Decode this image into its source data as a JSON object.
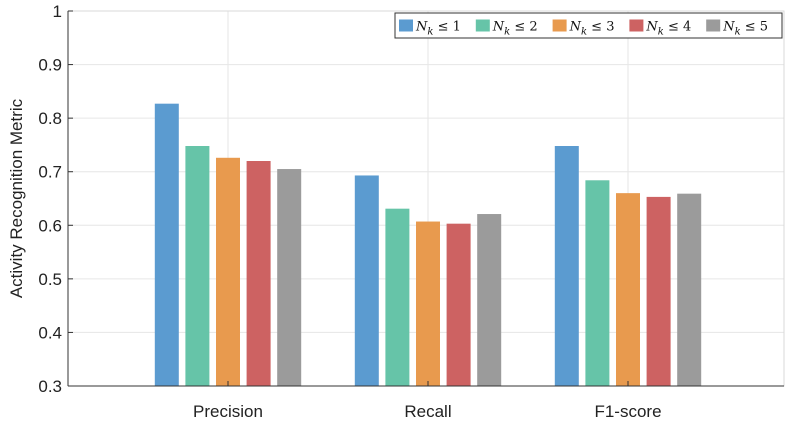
{
  "chart_data": {
    "type": "bar",
    "title": "",
    "xlabel": "",
    "ylabel": "Activity Recognition Metric",
    "categories": [
      "Precision",
      "Recall",
      "F1-score"
    ],
    "ylim": [
      0.3,
      1.0
    ],
    "yticks": [
      0.3,
      0.4,
      0.5,
      0.6,
      0.7,
      0.8,
      0.9,
      1
    ],
    "ytick_labels": [
      "0.3",
      "0.4",
      "0.5",
      "0.6",
      "0.7",
      "0.8",
      "0.9",
      "1"
    ],
    "grid": true,
    "legend_position": "top-right",
    "series": [
      {
        "name": "N_k ≤ 1",
        "legend_main": "N",
        "legend_sub": "k",
        "legend_rest": " ≤ 1",
        "color": "#5b9bd0",
        "values": [
          0.827,
          0.693,
          0.748
        ]
      },
      {
        "name": "N_k ≤ 2",
        "legend_main": "N",
        "legend_sub": "k",
        "legend_rest": " ≤ 2",
        "color": "#66c4a8",
        "values": [
          0.748,
          0.631,
          0.684
        ]
      },
      {
        "name": "N_k ≤ 3",
        "legend_main": "N",
        "legend_sub": "k",
        "legend_rest": " ≤ 3",
        "color": "#e89a4e",
        "values": [
          0.726,
          0.607,
          0.66
        ]
      },
      {
        "name": "N_k ≤ 4",
        "legend_main": "N",
        "legend_sub": "k",
        "legend_rest": " ≤ 4",
        "color": "#cd6262",
        "values": [
          0.72,
          0.603,
          0.653
        ]
      },
      {
        "name": "N_k ≤ 5",
        "legend_main": "N",
        "legend_sub": "k",
        "legend_rest": " ≤ 5",
        "color": "#9b9b9b",
        "values": [
          0.705,
          0.621,
          0.659
        ]
      }
    ]
  }
}
